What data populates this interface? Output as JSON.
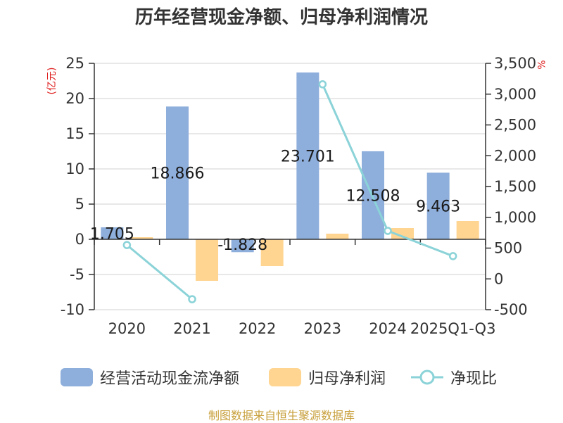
{
  "title": "历年经营现金净额、归母净利润情况",
  "source": "制图数据来自恒生聚源数据库",
  "colors": {
    "cash": "#8eaedb",
    "profit": "#ffd591",
    "ratio": "#8bd3d8",
    "unit": "#e02020"
  },
  "chart_data": {
    "type": "bar+line",
    "categories": [
      "2020",
      "2021",
      "2022",
      "2023",
      "2024",
      "2025Q1-Q3"
    ],
    "y_left": {
      "unit": "(亿元)",
      "min": -10,
      "max": 25,
      "ticks": [
        -10,
        -5,
        0,
        5,
        10,
        15,
        20,
        25
      ]
    },
    "y_right": {
      "unit": "%",
      "min": -500,
      "max": 3500,
      "ticks": [
        -500,
        0,
        500,
        1000,
        1500,
        2000,
        2500,
        3000,
        3500
      ],
      "tick_labels": [
        "-500",
        "0",
        "500",
        "1,000",
        "1,500",
        "2,000",
        "2,500",
        "3,000",
        "3,500"
      ]
    },
    "series": [
      {
        "name": "经营活动现金流净额",
        "type": "bar",
        "axis": "left",
        "values": [
          1.705,
          18.866,
          -1.828,
          23.701,
          12.508,
          9.463
        ],
        "labels": [
          "1.705",
          "18.866",
          "-1.828",
          "23.701",
          "12.508",
          "9.463"
        ]
      },
      {
        "name": "归母净利润",
        "type": "bar",
        "axis": "left",
        "values": [
          0.3,
          -5.9,
          -3.8,
          0.8,
          1.6,
          2.6
        ]
      },
      {
        "name": "净现比",
        "type": "line",
        "axis": "right",
        "values": [
          550,
          -330,
          null,
          3160,
          780,
          370
        ]
      }
    ]
  }
}
